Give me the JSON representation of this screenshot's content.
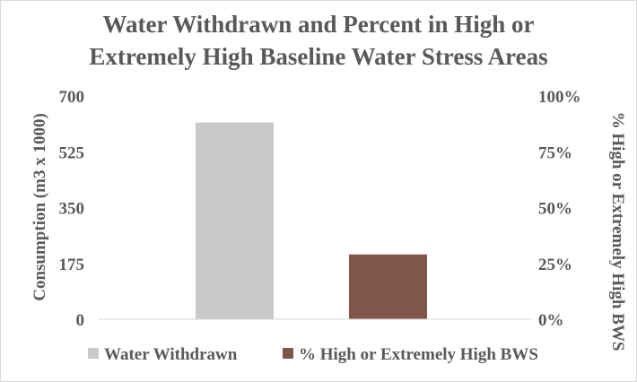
{
  "chart_data": {
    "type": "bar",
    "title_lines": [
      "Water Withdrawn and Percent in High or",
      "Extremely High Baseline Water Stress Areas"
    ],
    "ylabel": "Consumption  (m3 x 1000)",
    "y2label": "% High or Extremely High BWS",
    "ylim": [
      0,
      700
    ],
    "y_ticks": [
      "0",
      "175",
      "350",
      "525",
      "700"
    ],
    "y2lim": [
      0,
      100
    ],
    "y2_ticks": [
      "0%",
      "25%",
      "50%",
      "75%",
      "100%"
    ],
    "series": [
      {
        "name": "Water Withdrawn",
        "axis": "left",
        "value": 617,
        "color": "#c9c9c9"
      },
      {
        "name": "% High or Extremely High BWS",
        "axis": "right",
        "value": 29,
        "color": "#7f574a"
      }
    ],
    "grid": false,
    "legend_position": "bottom"
  }
}
